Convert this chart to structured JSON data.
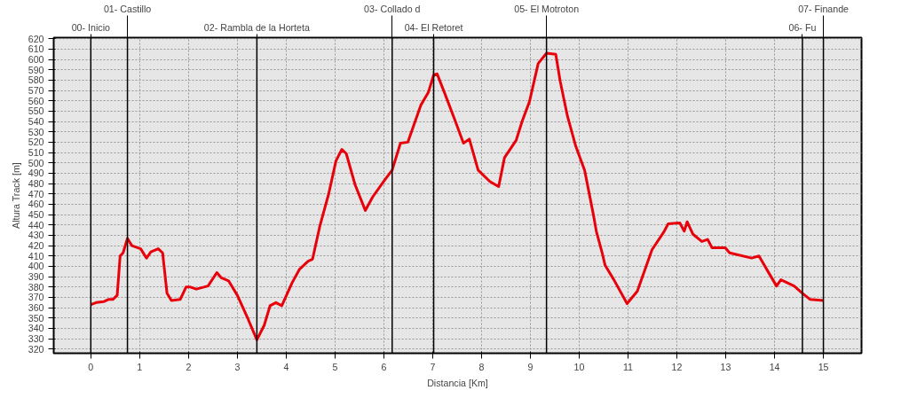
{
  "chart_data": {
    "type": "line",
    "xlabel": "Distancia [Km]",
    "ylabel": "Altura Track [m]",
    "x": [
      0,
      0.11,
      0.27,
      0.36,
      0.45,
      0.54,
      0.6,
      0.66,
      0.75,
      0.84,
      1.02,
      1.14,
      1.23,
      1.38,
      1.47,
      1.56,
      1.65,
      1.83,
      1.95,
      2.04,
      2.16,
      2.4,
      2.58,
      2.67,
      2.82,
      3.0,
      3.22,
      3.4,
      3.55,
      3.67,
      3.79,
      3.91,
      4.12,
      4.27,
      4.45,
      4.54,
      4.69,
      4.87,
      5.02,
      5.14,
      5.23,
      5.41,
      5.62,
      5.77,
      6.01,
      6.17,
      6.34,
      6.49,
      6.76,
      6.91,
      7.02,
      7.09,
      7.24,
      7.45,
      7.63,
      7.75,
      7.93,
      8.17,
      8.35,
      8.47,
      8.71,
      8.83,
      8.98,
      9.16,
      9.33,
      9.52,
      9.61,
      9.76,
      9.93,
      10.11,
      10.29,
      10.35,
      10.47,
      10.53,
      10.71,
      10.98,
      11.19,
      11.49,
      11.73,
      11.82,
      12.06,
      12.15,
      12.21,
      12.33,
      12.51,
      12.63,
      12.72,
      12.99,
      13.08,
      13.53,
      13.68,
      13.89,
      14.04,
      14.13,
      14.4,
      14.57,
      14.73,
      15.0
    ],
    "series": [
      {
        "color": "#e8000b",
        "values": [
          363,
          365,
          366,
          368,
          368,
          372,
          410,
          413,
          427,
          420,
          417,
          408,
          414,
          417,
          413,
          374,
          367,
          368,
          380,
          380,
          378,
          381,
          394,
          389,
          386,
          372,
          349,
          329,
          343,
          362,
          365,
          362,
          384,
          397,
          405,
          407,
          439,
          470,
          502,
          513,
          509,
          479,
          454,
          467,
          483,
          493,
          519,
          520,
          556,
          568,
          585,
          586,
          568,
          542,
          519,
          523,
          493,
          482,
          477,
          505,
          522,
          540,
          559,
          596,
          606,
          605,
          579,
          545,
          516,
          493,
          450,
          434,
          413,
          401,
          387,
          364,
          376,
          416,
          433,
          441,
          442,
          434,
          443,
          431,
          424,
          426,
          418,
          418,
          413,
          408,
          410,
          393,
          381,
          387,
          381,
          374,
          368,
          367
        ]
      }
    ],
    "xlim": [
      -0.76,
      15.78
    ],
    "ylim": [
      316,
      621
    ],
    "xticks": [
      0,
      1,
      2,
      3,
      4,
      5,
      6,
      7,
      8,
      9,
      10,
      11,
      12,
      13,
      14,
      15
    ],
    "yticks": [
      320,
      330,
      340,
      350,
      360,
      370,
      380,
      390,
      400,
      410,
      420,
      430,
      440,
      450,
      460,
      470,
      480,
      490,
      500,
      510,
      520,
      530,
      540,
      550,
      560,
      570,
      580,
      590,
      600,
      610,
      620
    ],
    "grid": true,
    "line_style": "solid",
    "marker": "none",
    "ref_lines": [
      {
        "axis": "x",
        "value": 0,
        "label": "00- Inicio"
      },
      {
        "axis": "x",
        "value": 0.75,
        "label": "01- Castillo"
      },
      {
        "axis": "x",
        "value": 3.4,
        "label": "02- Rambla de la Horteta"
      },
      {
        "axis": "x",
        "value": 6.17,
        "label": "03- Collado d"
      },
      {
        "axis": "x",
        "value": 7.02,
        "label": "04- El Retoret"
      },
      {
        "axis": "x",
        "value": 9.33,
        "label": "05- El Motroton"
      },
      {
        "axis": "x",
        "value": 14.57,
        "label": "06- Fu"
      },
      {
        "axis": "x",
        "value": 15.0,
        "label": "07- Finande"
      }
    ]
  }
}
